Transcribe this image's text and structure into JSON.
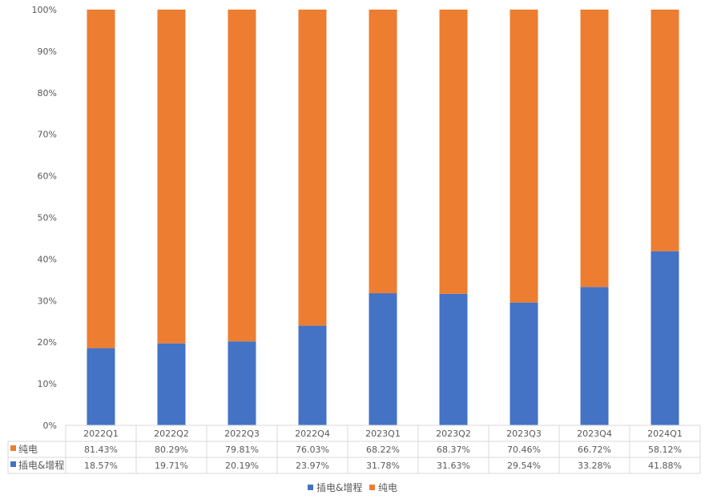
{
  "chart_data": {
    "type": "bar",
    "stacked": true,
    "percent_stacked": true,
    "categories": [
      "2022Q1",
      "2022Q2",
      "2022Q3",
      "2022Q4",
      "2023Q1",
      "2023Q2",
      "2023Q3",
      "2023Q4",
      "2024Q1"
    ],
    "series": [
      {
        "name": "插电&增程",
        "color": "#4472C4",
        "values": [
          18.57,
          19.71,
          20.19,
          23.97,
          31.78,
          31.63,
          29.54,
          33.28,
          41.88
        ],
        "labels": [
          "18.57%",
          "19.71%",
          "20.19%",
          "23.97%",
          "31.78%",
          "31.63%",
          "29.54%",
          "33.28%",
          "41.88%"
        ]
      },
      {
        "name": "纯电",
        "color": "#ED7D31",
        "values": [
          81.43,
          80.29,
          79.81,
          76.03,
          68.22,
          68.37,
          70.46,
          66.72,
          58.12
        ],
        "labels": [
          "81.43%",
          "80.29%",
          "79.81%",
          "76.03%",
          "68.22%",
          "68.37%",
          "70.46%",
          "66.72%",
          "58.12%"
        ]
      }
    ],
    "yticks": [
      "0%",
      "10%",
      "20%",
      "30%",
      "40%",
      "50%",
      "60%",
      "70%",
      "80%",
      "90%",
      "100%"
    ],
    "ylim": [
      0,
      100
    ],
    "grid": false,
    "data_table": true,
    "data_table_row_order": [
      "纯电",
      "插电&增程"
    ],
    "legend_position": "bottom"
  }
}
